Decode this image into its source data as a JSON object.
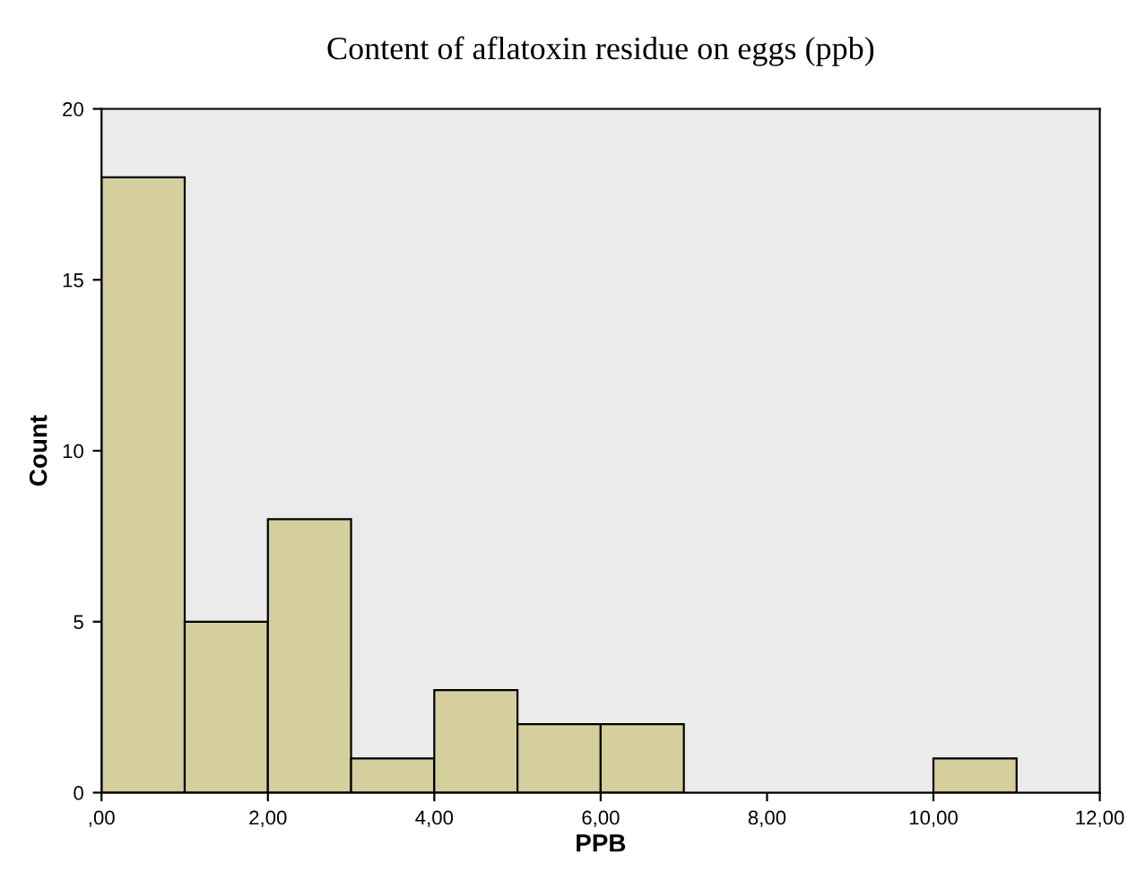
{
  "chart_data": {
    "type": "histogram",
    "title": "Content of aflatoxin residue on eggs (ppb)",
    "xlabel": "PPB",
    "ylabel": "Count",
    "bins": [
      0,
      1,
      2,
      3,
      4,
      5,
      6,
      7,
      8,
      9,
      10,
      11
    ],
    "values": [
      18,
      5,
      8,
      1,
      3,
      2,
      2,
      0,
      0,
      0,
      1
    ],
    "color": "#d4cf9d",
    "xlim": [
      0,
      12
    ],
    "xticks": [
      {
        "value": 0,
        "label": ",00"
      },
      {
        "value": 2,
        "label": "2,00"
      },
      {
        "value": 4,
        "label": "4,00"
      },
      {
        "value": 6,
        "label": "6,00"
      },
      {
        "value": 8,
        "label": "8,00"
      },
      {
        "value": 10,
        "label": "10,00"
      },
      {
        "value": 12,
        "label": "12,00"
      }
    ],
    "ylim": [
      0,
      20
    ],
    "yticks": [
      0,
      5,
      10,
      15,
      20
    ],
    "grid": false
  }
}
